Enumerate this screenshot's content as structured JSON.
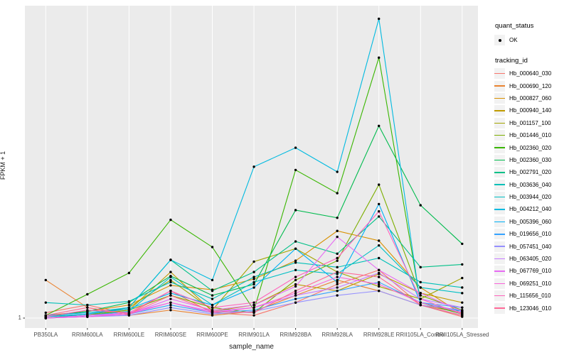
{
  "figure": {
    "y_axis_title": "FPKM + 1",
    "x_axis_title": "sample_name",
    "y_tick_label": "1"
  },
  "legend": {
    "quant_status_title": "quant_status",
    "quant_status_ok_label": "OK",
    "tracking_id_title": "tracking_id"
  },
  "colors": {
    "panel_bg": "#EBEBEB",
    "grid": "#FFFFFF",
    "tick_mark": "#333333",
    "axis_text": "#4D4D4D",
    "legend_key_bg": "#F2F2F2",
    "point": "#000000"
  },
  "chart_data": {
    "type": "line",
    "title": "",
    "xlabel": "sample_name",
    "ylabel": "FPKM + 1",
    "y_scale": "log10",
    "y_ticks": [
      "1"
    ],
    "ylim": [
      0.94,
      9.8
    ],
    "grid": "vertical-major-only",
    "legend_position": "right",
    "x_categories": [
      "PB350LA",
      "RRIM600LA",
      "RRIM600LE",
      "RRIM600SE",
      "RRIM600PE",
      "RRIM901LA",
      "RRIM928BA",
      "RRIM928LA",
      "RRIM928LE",
      "RRII105LA_Control",
      "RRII105LA_Stressed"
    ],
    "quant_status_items": [
      "OK"
    ],
    "series": [
      {
        "name": "Hb_000640_030",
        "color": "#F8766D",
        "values": [
          1.04,
          1.1,
          1.03,
          1.22,
          1.04,
          1.02,
          1.12,
          1.28,
          1.42,
          1.1,
          1.01
        ]
      },
      {
        "name": "Hb_000690_120",
        "color": "#EA8331",
        "values": [
          1.32,
          1.08,
          1.02,
          1.06,
          1.02,
          1.05,
          1.18,
          1.32,
          1.22,
          1.1,
          1.04
        ]
      },
      {
        "name": "Hb_000827_060",
        "color": "#D89000",
        "values": [
          1.02,
          1.05,
          1.1,
          1.27,
          1.23,
          1.33,
          1.52,
          1.89,
          1.76,
          1.25,
          1.03
        ]
      },
      {
        "name": "Hb_000940_140",
        "color": "#C09B00",
        "values": [
          1.01,
          1.03,
          1.06,
          1.4,
          1.05,
          1.1,
          1.28,
          1.22,
          1.38,
          1.2,
          1.12
        ]
      },
      {
        "name": "Hb_001157_100",
        "color": "#A3A500",
        "values": [
          1.0,
          1.02,
          1.08,
          1.32,
          1.06,
          1.51,
          1.66,
          1.4,
          1.26,
          1.15,
          1.34
        ]
      },
      {
        "name": "Hb_001446_010",
        "color": "#7CAE00",
        "values": [
          1.0,
          1.02,
          1.06,
          1.18,
          1.08,
          1.04,
          1.32,
          1.52,
          2.65,
          1.18,
          1.06
        ]
      },
      {
        "name": "Hb_002360_020",
        "color": "#39B600",
        "values": [
          1.02,
          1.19,
          1.39,
          2.05,
          1.68,
          1.06,
          2.95,
          2.49,
          6.7,
          1.12,
          1.03
        ]
      },
      {
        "name": "Hb_002360_030",
        "color": "#00BB4E",
        "values": [
          1.01,
          1.05,
          1.12,
          1.36,
          1.18,
          1.28,
          2.2,
          2.08,
          4.07,
          2.28,
          1.72
        ]
      },
      {
        "name": "Hb_002791_020",
        "color": "#00C087",
        "values": [
          1.0,
          1.03,
          1.08,
          1.53,
          1.22,
          1.4,
          1.75,
          1.6,
          2.1,
          1.45,
          1.48
        ]
      },
      {
        "name": "Hb_003636_040",
        "color": "#00C0B8",
        "values": [
          1.12,
          1.1,
          1.13,
          1.3,
          1.15,
          1.35,
          1.5,
          1.45,
          1.55,
          1.3,
          1.25
        ]
      },
      {
        "name": "Hb_003944_020",
        "color": "#00BFC4",
        "values": [
          1.0,
          1.02,
          1.05,
          1.35,
          1.1,
          1.3,
          1.42,
          1.38,
          1.7,
          1.25,
          1.2
        ]
      },
      {
        "name": "Hb_004212_040",
        "color": "#00BAE0",
        "values": [
          1.02,
          1.04,
          1.08,
          1.53,
          1.32,
          3.02,
          3.47,
          2.91,
          8.9,
          1.1,
          1.02
        ]
      },
      {
        "name": "Hb_005396_060",
        "color": "#00B0F6",
        "values": [
          1.01,
          1.03,
          1.07,
          1.2,
          1.1,
          1.25,
          1.66,
          1.3,
          2.3,
          1.12,
          1.05
        ]
      },
      {
        "name": "Hb_019656_010",
        "color": "#35A2FF",
        "values": [
          1.0,
          1.01,
          1.03,
          1.1,
          1.04,
          1.06,
          1.15,
          1.22,
          1.3,
          1.12,
          1.08
        ]
      },
      {
        "name": "Hb_057451_040",
        "color": "#9590FF",
        "values": [
          1.0,
          1.01,
          1.02,
          1.08,
          1.03,
          1.05,
          1.12,
          1.18,
          1.22,
          1.1,
          1.06
        ]
      },
      {
        "name": "Hb_063405_020",
        "color": "#C77CFF",
        "values": [
          1.0,
          1.02,
          1.04,
          1.12,
          1.05,
          1.08,
          1.18,
          1.25,
          1.39,
          1.15,
          1.08
        ]
      },
      {
        "name": "Hb_067769_010",
        "color": "#E76BF3",
        "values": [
          1.0,
          1.02,
          1.03,
          1.15,
          1.06,
          1.1,
          1.26,
          1.81,
          1.42,
          1.2,
          1.05
        ]
      },
      {
        "name": "Hb_069251_010",
        "color": "#FA62DB",
        "values": [
          1.0,
          1.01,
          1.03,
          1.12,
          1.04,
          1.08,
          1.2,
          1.35,
          1.28,
          1.12,
          1.04
        ]
      },
      {
        "name": "Hb_115656_010",
        "color": "#FF62BC",
        "values": [
          1.01,
          1.06,
          1.04,
          1.22,
          1.08,
          1.12,
          1.35,
          1.55,
          2.18,
          1.15,
          1.03
        ]
      },
      {
        "name": "Hb_123046_010",
        "color": "#FF6A98",
        "values": [
          1.02,
          1.08,
          1.03,
          1.18,
          1.05,
          1.04,
          1.22,
          1.4,
          1.35,
          1.1,
          1.02
        ]
      }
    ]
  }
}
